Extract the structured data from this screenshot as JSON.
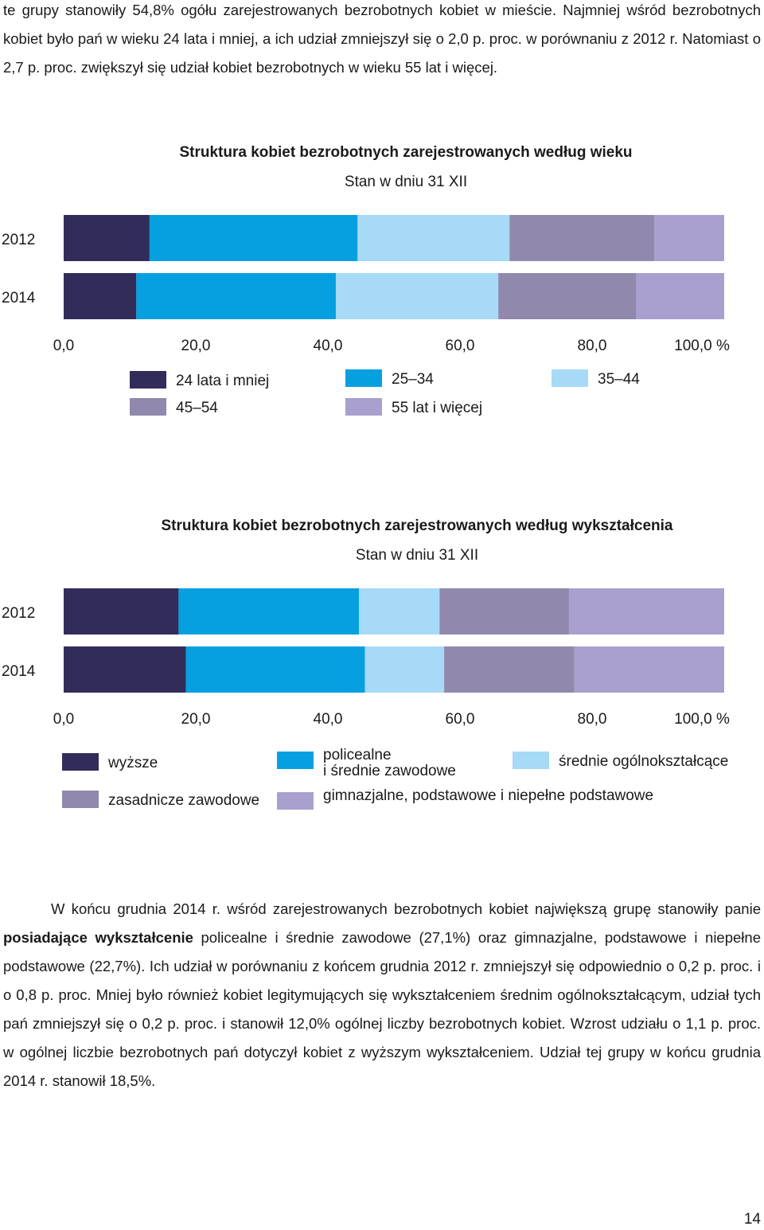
{
  "intro": {
    "text": "te grupy stanowiły 54,8% ogółu zarejestrowanych bezrobotnych kobiet w mieście. Najmniej wśród bezrobotnych kobiet było pań w wieku 24 lata i mniej, a ich udział zmniejszył się o 2,0 p. proc. w porównaniu z 2012 r. Natomiast o 2,7 p. proc. zwiększył się udział kobiet bezrobotnych w wieku 55 lat i więcej."
  },
  "chart_data": [
    {
      "type": "bar",
      "orientation": "horizontal",
      "stacked": true,
      "title": "Struktura kobiet bezrobotnych zarejestrowanych według wieku",
      "subtitle": "Stan w dniu 31 XII",
      "categories": [
        "2012",
        "2014"
      ],
      "xlim": [
        0,
        100
      ],
      "xticks": [
        "0,0",
        "20,0",
        "40,0",
        "60,0",
        "80,0",
        "100,0 %"
      ],
      "series": [
        {
          "name": "24 lata i mniej",
          "color": "#312c5a",
          "values": [
            13.0,
            11.0
          ]
        },
        {
          "name": "25–34",
          "color": "#06a0e0",
          "values": [
            31.5,
            30.2
          ]
        },
        {
          "name": "35–44",
          "color": "#a6daf6",
          "values": [
            23.0,
            24.6
          ]
        },
        {
          "name": "45–54",
          "color": "#9089ad",
          "values": [
            21.9,
            20.9
          ]
        },
        {
          "name": "55 lat i więcej",
          "color": "#a9a0cf",
          "values": [
            10.6,
            13.3
          ]
        }
      ]
    },
    {
      "type": "bar",
      "orientation": "horizontal",
      "stacked": true,
      "title": "Struktura kobiet bezrobotnych zarejestrowanych według wykształcenia",
      "subtitle": "Stan w dniu 31 XII",
      "categories": [
        "2012",
        "2014"
      ],
      "xlim": [
        0,
        100
      ],
      "xticks": [
        "0,0",
        "20,0",
        "40,0",
        "60,0",
        "80,0",
        "100,0 %"
      ],
      "series": [
        {
          "name": "wyższe",
          "color": "#312c5a",
          "values": [
            17.4,
            18.5
          ]
        },
        {
          "name": "policealne i średnie zawodowe",
          "color": "#06a0e0",
          "values": [
            27.3,
            27.1
          ]
        },
        {
          "name": "średnie ogólnokształcące",
          "color": "#a6daf6",
          "values": [
            12.2,
            12.0
          ]
        },
        {
          "name": "zasadnicze zawodowe",
          "color": "#9089ad",
          "values": [
            19.6,
            19.7
          ]
        },
        {
          "name": "gimnazjalne, podstawowe i niepełne podstawowe",
          "color": "#a9a0cf",
          "values": [
            23.5,
            22.7
          ]
        }
      ]
    }
  ],
  "outro": {
    "text_part1": "W końcu grudnia 2014 r. wśród zarejestrowanych bezrobotnych kobiet największą grupę stanowiły panie ",
    "text_bold": "posiadające wykształcenie",
    "text_part2": " policealne i średnie zawodowe (27,1%) oraz gimnazjalne, podstawowe i niepełne podstawowe (22,7%). Ich udział w porównaniu z końcem grudnia 2012 r. zmniejszył się odpowiednio o 0,2 p. proc. i o 0,8 p. proc. Mniej było również kobiet legitymujących się wykształceniem średnim ogólnokształcącym, udział tych pań zmniejszył się o 0,2 p. proc. i stanowił 12,0% ogólnej liczby bezrobotnych kobiet. Wzrost udziału o 1,1 p. proc. w ogólnej liczbie bezrobotnych pań dotyczył kobiet z wyższym wykształceniem. Udział tej grupy w końcu grudnia 2014 r. stanowił 18,5%."
  },
  "page_number": "14"
}
